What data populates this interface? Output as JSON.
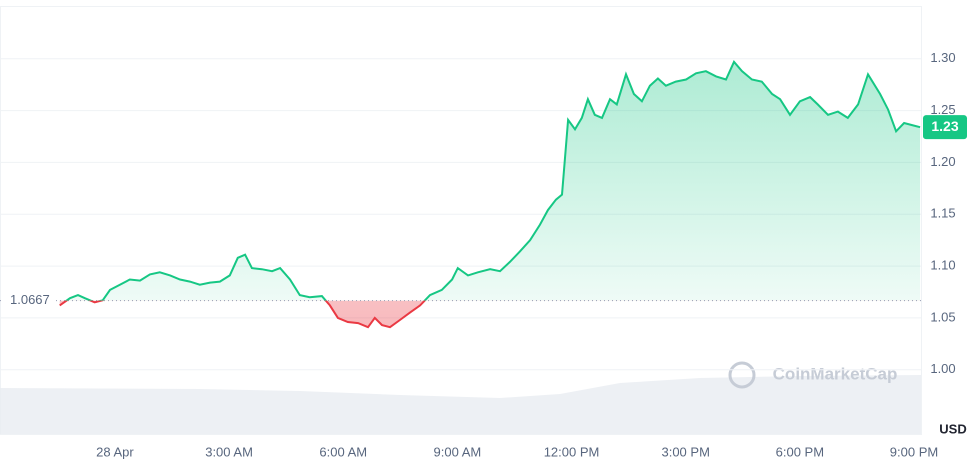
{
  "chart_data": {
    "type": "line",
    "currency": "USD",
    "watermark": "CoinMarketCap",
    "baseline": 1.0667,
    "price_tag": "1.23",
    "xlim": [
      -3.02,
      21.21
    ],
    "xticks": [
      {
        "value": 0,
        "label": "28 Apr"
      },
      {
        "value": 3,
        "label": "3:00 AM"
      },
      {
        "value": 6,
        "label": "6:00 AM"
      },
      {
        "value": 9,
        "label": "9:00 AM"
      },
      {
        "value": 12,
        "label": "12:00 PM"
      },
      {
        "value": 15,
        "label": "3:00 PM"
      },
      {
        "value": 18,
        "label": "6:00 PM"
      },
      {
        "value": 21,
        "label": "9:00 PM"
      }
    ],
    "ylim": [
      0.937,
      1.349
    ],
    "yticks": [
      {
        "value": 1,
        "label": "1.00"
      },
      1.05,
      {
        "value": 1.1,
        "label": "1.10"
      },
      1.15,
      {
        "value": 1.2,
        "label": "1.20"
      },
      1.25,
      {
        "value": 1.3,
        "label": "1.30"
      }
    ],
    "grid": true,
    "up_color": "#16c784",
    "down_color": "#ea3943",
    "x": [
      -1.45,
      -1.18,
      -0.97,
      -0.79,
      -0.53,
      -0.32,
      -0.13,
      0.13,
      0.39,
      0.66,
      0.92,
      1.18,
      1.45,
      1.71,
      1.97,
      2.23,
      2.5,
      2.76,
      3.02,
      3.23,
      3.42,
      3.6,
      3.86,
      4.13,
      4.34,
      4.6,
      4.86,
      5.12,
      5.44,
      5.65,
      5.86,
      6.12,
      6.39,
      6.65,
      6.83,
      7.02,
      7.23,
      7.49,
      7.75,
      8.02,
      8.28,
      8.59,
      8.86,
      9.01,
      9.28,
      9.54,
      9.86,
      10.12,
      10.38,
      10.64,
      10.91,
      11.17,
      11.38,
      11.59,
      11.75,
      11.91,
      12.09,
      12.27,
      12.43,
      12.61,
      12.8,
      13.01,
      13.19,
      13.43,
      13.64,
      13.85,
      14.06,
      14.27,
      14.48,
      14.74,
      15.01,
      15.27,
      15.53,
      15.8,
      16.06,
      16.27,
      16.48,
      16.74,
      17,
      17.27,
      17.48,
      17.74,
      18,
      18.27,
      18.47,
      18.74,
      19,
      19.26,
      19.53,
      19.79,
      20.11,
      20.32,
      20.53,
      20.74,
      20.95,
      21.16
    ],
    "values": [
      1.062,
      1.069,
      1.072,
      1.069,
      1.065,
      1.067,
      1.077,
      1.082,
      1.087,
      1.086,
      1.092,
      1.094,
      1.091,
      1.087,
      1.085,
      1.082,
      1.084,
      1.085,
      1.091,
      1.108,
      1.111,
      1.098,
      1.097,
      1.095,
      1.098,
      1.087,
      1.072,
      1.07,
      1.071,
      1.062,
      1.05,
      1.046,
      1.045,
      1.041,
      1.05,
      1.043,
      1.041,
      1.048,
      1.055,
      1.062,
      1.072,
      1.077,
      1.087,
      1.098,
      1.091,
      1.094,
      1.097,
      1.095,
      1.104,
      1.114,
      1.125,
      1.14,
      1.154,
      1.164,
      1.169,
      1.241,
      1.232,
      1.243,
      1.261,
      1.246,
      1.243,
      1.261,
      1.256,
      1.285,
      1.266,
      1.259,
      1.274,
      1.281,
      1.274,
      1.278,
      1.28,
      1.286,
      1.288,
      1.283,
      1.28,
      1.297,
      1.288,
      1.28,
      1.278,
      1.266,
      1.261,
      1.246,
      1.259,
      1.263,
      1.256,
      1.246,
      1.249,
      1.243,
      1.256,
      1.285,
      1.266,
      1.251,
      1.23,
      1.238,
      1.236,
      1.234
    ]
  }
}
